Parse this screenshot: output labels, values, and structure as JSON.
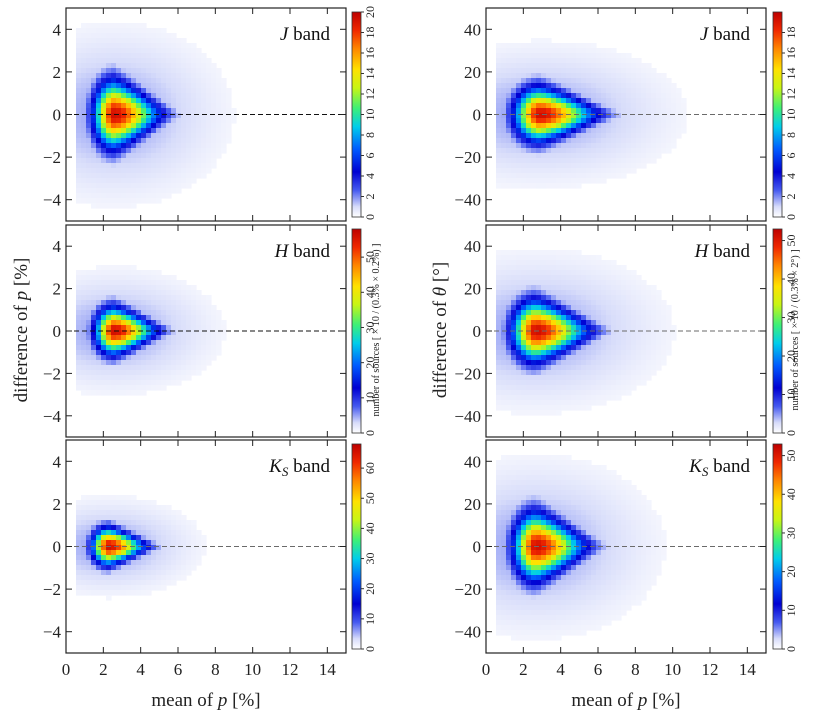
{
  "chart_data": {
    "type": "heatmap",
    "shared": {
      "xlabel": "mean of p [%]",
      "xlim": [
        0,
        15
      ],
      "xticks": [
        0,
        2,
        4,
        6,
        8,
        10,
        12,
        14
      ],
      "bands": [
        "J band",
        "H band",
        "Ks band"
      ]
    },
    "columns": [
      {
        "ylabel": "difference of p [%]",
        "ylim": [
          -5,
          5
        ],
        "yticks": [
          -4,
          -2,
          0,
          2,
          4
        ],
        "colorbar_label": "number of sources [ × 10 / (0.3% × 0.2%) ]",
        "panels": [
          {
            "band": "J band",
            "cb_ticks": [
              0,
              2,
              4,
              6,
              8,
              10,
              12,
              14,
              16,
              18,
              20
            ],
            "cb_max": 20,
            "peak_x": 2.6,
            "peak_y": 0.0,
            "sx": 1.3,
            "sy": 1.0,
            "dash": "dark"
          },
          {
            "band": "H band",
            "cb_ticks": [
              0,
              10,
              20,
              30,
              40,
              50
            ],
            "cb_max": 58,
            "peak_x": 2.6,
            "peak_y": 0.0,
            "sx": 1.2,
            "sy": 0.7,
            "dash": "dark"
          },
          {
            "band": "Ks band",
            "cb_ticks": [
              0,
              10,
              20,
              30,
              40,
              50,
              60
            ],
            "cb_max": 68,
            "peak_x": 2.3,
            "peak_y": 0.0,
            "sx": 1.05,
            "sy": 0.55,
            "dash": "gray"
          }
        ]
      },
      {
        "ylabel": "difference of θ [°]",
        "ylim": [
          -50,
          50
        ],
        "yticks": [
          -40,
          -20,
          0,
          20,
          40
        ],
        "colorbar_label": "number of sources [ × 10 / (0.3% × 2°) ]",
        "panels": [
          {
            "band": "J band",
            "cb_ticks": [
              0,
              2,
              4,
              6,
              8,
              10,
              12,
              14,
              16,
              18
            ],
            "cb_max": 20,
            "peak_x": 2.9,
            "peak_y": 0.0,
            "sx": 1.6,
            "sy": 8.0,
            "dash": "gray"
          },
          {
            "band": "H band",
            "cb_ticks": [
              0,
              10,
              20,
              30,
              40,
              50
            ],
            "cb_max": 53,
            "peak_x": 2.7,
            "peak_y": 0.0,
            "sx": 1.5,
            "sy": 9.0,
            "dash": "gray"
          },
          {
            "band": "Ks band",
            "cb_ticks": [
              0,
              10,
              20,
              30,
              40,
              50
            ],
            "cb_max": 53,
            "peak_x": 2.7,
            "peak_y": 0.0,
            "sx": 1.4,
            "sy": 10.0,
            "dash": "gray"
          }
        ]
      }
    ]
  }
}
